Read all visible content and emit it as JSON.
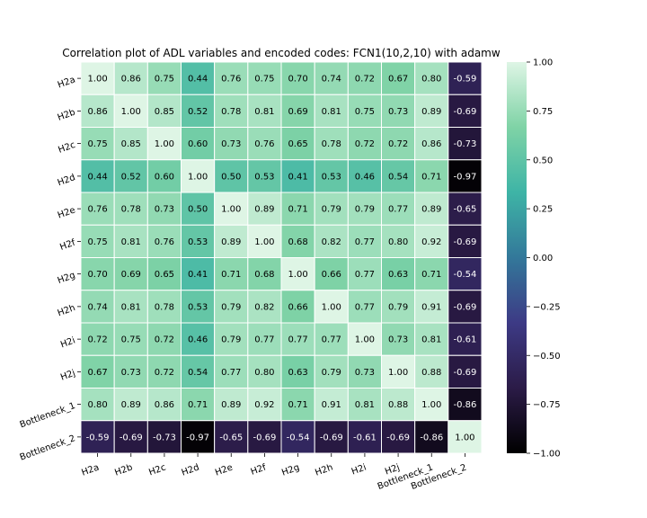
{
  "chart_data": {
    "type": "heatmap",
    "title": "Correlation plot of ADL variables and encoded codes: FCN1(10,2,10) with adamw",
    "labels": [
      "H2a",
      "H2b",
      "H2c",
      "H2d",
      "H2e",
      "H2f",
      "H2g",
      "H2h",
      "H2i",
      "H2j",
      "Bottleneck_1",
      "Bottleneck_2"
    ],
    "values": [
      [
        1.0,
        0.86,
        0.75,
        0.44,
        0.76,
        0.75,
        0.7,
        0.74,
        0.72,
        0.67,
        0.8,
        -0.59
      ],
      [
        0.86,
        1.0,
        0.85,
        0.52,
        0.78,
        0.81,
        0.69,
        0.81,
        0.75,
        0.73,
        0.89,
        -0.69
      ],
      [
        0.75,
        0.85,
        1.0,
        0.6,
        0.73,
        0.76,
        0.65,
        0.78,
        0.72,
        0.72,
        0.86,
        -0.73
      ],
      [
        0.44,
        0.52,
        0.6,
        1.0,
        0.5,
        0.53,
        0.41,
        0.53,
        0.46,
        0.54,
        0.71,
        -0.97
      ],
      [
        0.76,
        0.78,
        0.73,
        0.5,
        1.0,
        0.89,
        0.71,
        0.79,
        0.79,
        0.77,
        0.89,
        -0.65
      ],
      [
        0.75,
        0.81,
        0.76,
        0.53,
        0.89,
        1.0,
        0.68,
        0.82,
        0.77,
        0.8,
        0.92,
        -0.69
      ],
      [
        0.7,
        0.69,
        0.65,
        0.41,
        0.71,
        0.68,
        1.0,
        0.66,
        0.77,
        0.63,
        0.71,
        -0.54
      ],
      [
        0.74,
        0.81,
        0.78,
        0.53,
        0.79,
        0.82,
        0.66,
        1.0,
        0.77,
        0.79,
        0.91,
        -0.69
      ],
      [
        0.72,
        0.75,
        0.72,
        0.46,
        0.79,
        0.77,
        0.77,
        0.77,
        1.0,
        0.73,
        0.81,
        -0.61
      ],
      [
        0.67,
        0.73,
        0.72,
        0.54,
        0.77,
        0.8,
        0.63,
        0.79,
        0.73,
        1.0,
        0.88,
        -0.69
      ],
      [
        0.8,
        0.89,
        0.86,
        0.71,
        0.89,
        0.92,
        0.71,
        0.91,
        0.81,
        0.88,
        1.0,
        -0.86
      ],
      [
        -0.59,
        -0.69,
        -0.73,
        -0.97,
        -0.65,
        -0.69,
        -0.54,
        -0.69,
        -0.61,
        -0.69,
        -0.86,
        1.0
      ]
    ],
    "vmin": -1.0,
    "vmax": 1.0,
    "colorbar_ticks": [
      1.0,
      0.75,
      0.5,
      0.25,
      0.0,
      -0.25,
      -0.5,
      -0.75,
      -1.0
    ],
    "colormap": [
      "#000000",
      "#2b1b47",
      "#3d3a85",
      "#33789a",
      "#3eb4a6",
      "#7fd3a6",
      "#def5e5"
    ],
    "grid": true,
    "annotations": true
  }
}
